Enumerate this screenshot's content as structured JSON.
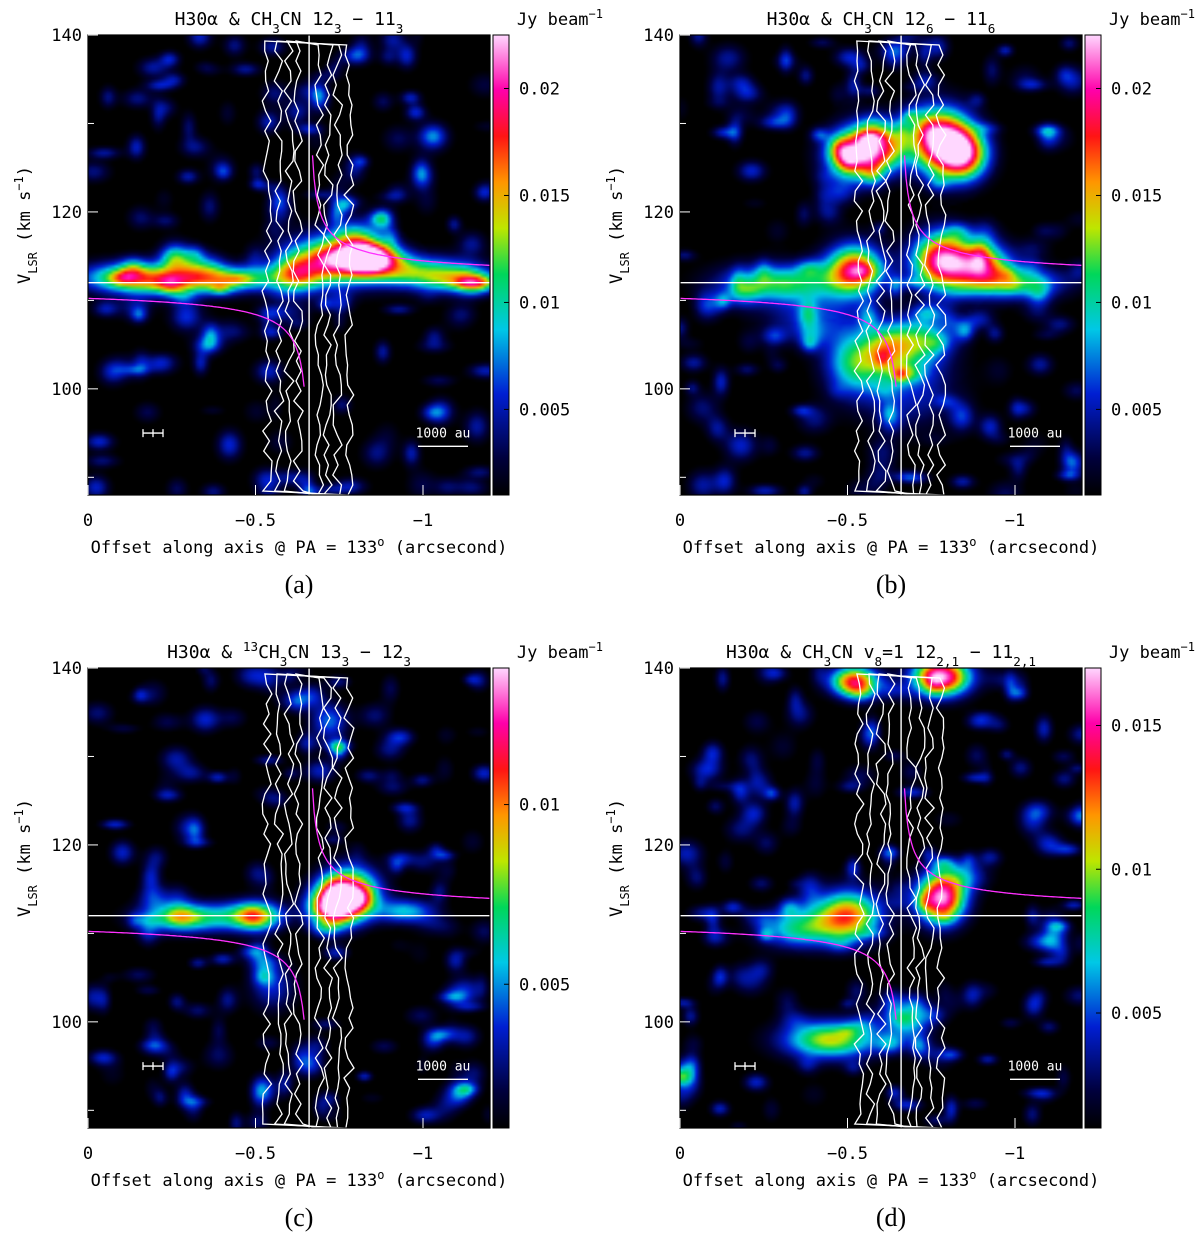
{
  "figure": {
    "panel_labels": [
      "(a)",
      "(b)",
      "(c)",
      "(d)"
    ],
    "colorbar_unit": "Jy beam",
    "colorbar_unit_exp": "−1",
    "xlabel": "Offset along axis @ PA = 133",
    "xlabel_deg": "o",
    "xlabel_unit": " (arcsecond)",
    "ylabel_main": "V",
    "ylabel_sub": "LSR",
    "ylabel_unit": " (km s",
    "ylabel_exp": "−1",
    "ylabel_close": ")",
    "scalebar_label": "1000  au"
  },
  "chart_data": [
    {
      "type": "heatmap",
      "panel": "(a)",
      "title_parts": [
        {
          "t": "H30α & CH",
          "s": ""
        },
        {
          "t": "3",
          "s": "sub"
        },
        {
          "t": "CN 12",
          "s": ""
        },
        {
          "t": "3",
          "s": "sub"
        },
        {
          "t": " − 11",
          "s": ""
        },
        {
          "t": "3",
          "s": "sub"
        }
      ],
      "x_ticks": [
        {
          "v": 0,
          "label": "0"
        },
        {
          "v": -0.5,
          "label": "−0.5"
        },
        {
          "v": -1,
          "label": "−1"
        }
      ],
      "y_ticks": [
        100,
        120,
        140
      ],
      "xlim": [
        0,
        -1.2
      ],
      "ylim": [
        88,
        140
      ],
      "colorbar_ticks": [
        {
          "v": 0.005,
          "label": "0.005"
        },
        {
          "v": 0.01,
          "label": "0.01"
        },
        {
          "v": 0.015,
          "label": "0.015"
        },
        {
          "v": 0.02,
          "label": "0.02"
        }
      ],
      "clim": [
        0.001,
        0.0225
      ],
      "systemic_velocity": 112,
      "center_offset": -0.66,
      "blobs": [
        [
          -0.12,
          112.6,
          0.1,
          1.2,
          0.011
        ],
        [
          -0.28,
          112.2,
          0.12,
          1.2,
          0.01
        ],
        [
          -0.45,
          112.5,
          0.1,
          1.0,
          0.009
        ],
        [
          -0.72,
          114.5,
          0.09,
          2.0,
          0.015
        ],
        [
          -0.84,
          114.8,
          0.06,
          1.2,
          0.022
        ],
        [
          -0.98,
          113.2,
          0.12,
          1.3,
          0.011
        ],
        [
          -1.12,
          112.2,
          0.08,
          1.0,
          0.008
        ],
        [
          -0.62,
          113.0,
          0.05,
          1.5,
          0.01
        ],
        [
          -0.8,
          117.0,
          0.05,
          1.5,
          0.008
        ]
      ]
    },
    {
      "type": "heatmap",
      "panel": "(b)",
      "title_parts": [
        {
          "t": "H30α & CH",
          "s": ""
        },
        {
          "t": "3",
          "s": "sub"
        },
        {
          "t": "CN 12",
          "s": ""
        },
        {
          "t": "6",
          "s": "sub"
        },
        {
          "t": " − 11",
          "s": ""
        },
        {
          "t": "6",
          "s": "sub"
        }
      ],
      "x_ticks": [
        {
          "v": 0,
          "label": "0"
        },
        {
          "v": -0.5,
          "label": "−0.5"
        },
        {
          "v": -1,
          "label": "−1"
        }
      ],
      "y_ticks": [
        100,
        120,
        140
      ],
      "xlim": [
        0,
        -1.2
      ],
      "ylim": [
        88,
        140
      ],
      "colorbar_ticks": [
        {
          "v": 0.005,
          "label": "0.005"
        },
        {
          "v": 0.01,
          "label": "0.01"
        },
        {
          "v": 0.015,
          "label": "0.015"
        },
        {
          "v": 0.02,
          "label": "0.02"
        }
      ],
      "clim": [
        0.001,
        0.0225
      ],
      "systemic_velocity": 112,
      "center_offset": -0.66,
      "blobs": [
        [
          -0.52,
          126.5,
          0.06,
          2.0,
          0.016
        ],
        [
          -0.6,
          127.5,
          0.06,
          2.0,
          0.014
        ],
        [
          -0.78,
          128.0,
          0.06,
          2.5,
          0.022
        ],
        [
          -0.85,
          126.5,
          0.05,
          2.0,
          0.016
        ],
        [
          -0.3,
          112.0,
          0.12,
          1.5,
          0.011
        ],
        [
          -0.52,
          113.5,
          0.06,
          2.0,
          0.017
        ],
        [
          -0.78,
          114.5,
          0.06,
          2.2,
          0.02
        ],
        [
          -0.9,
          114.0,
          0.06,
          1.8,
          0.015
        ],
        [
          -1.0,
          112.0,
          0.1,
          1.3,
          0.01
        ],
        [
          -0.52,
          103.0,
          0.06,
          2.5,
          0.01
        ],
        [
          -0.62,
          104.5,
          0.05,
          2.0,
          0.01
        ],
        [
          -0.72,
          105.5,
          0.06,
          2.0,
          0.01
        ],
        [
          -0.68,
          100.0,
          0.1,
          3.0,
          0.005
        ],
        [
          -0.4,
          108.0,
          0.1,
          2.0,
          0.005
        ]
      ]
    },
    {
      "type": "heatmap",
      "panel": "(c)",
      "title_parts": [
        {
          "t": "H30α & ",
          "s": ""
        },
        {
          "t": "13",
          "s": "sup"
        },
        {
          "t": "CH",
          "s": ""
        },
        {
          "t": "3",
          "s": "sub"
        },
        {
          "t": "CN 13",
          "s": ""
        },
        {
          "t": "3",
          "s": "sub"
        },
        {
          "t": " − 12",
          "s": ""
        },
        {
          "t": "3",
          "s": "sub"
        }
      ],
      "x_ticks": [
        {
          "v": 0,
          "label": "0"
        },
        {
          "v": -0.5,
          "label": "−0.5"
        },
        {
          "v": -1,
          "label": "−1"
        }
      ],
      "y_ticks": [
        100,
        120,
        140
      ],
      "xlim": [
        0,
        -1.2
      ],
      "ylim": [
        88,
        140
      ],
      "colorbar_ticks": [
        {
          "v": 0.005,
          "label": "0.005"
        },
        {
          "v": 0.01,
          "label": "0.01"
        }
      ],
      "clim": [
        0.001,
        0.0138
      ],
      "systemic_velocity": 112,
      "center_offset": -0.66,
      "blobs": [
        [
          -0.3,
          111.8,
          0.1,
          1.2,
          0.007
        ],
        [
          -0.5,
          112.0,
          0.06,
          1.2,
          0.008
        ],
        [
          -0.78,
          114.5,
          0.06,
          2.0,
          0.012
        ],
        [
          -0.73,
          113.0,
          0.05,
          1.5,
          0.01
        ],
        [
          -0.95,
          112.5,
          0.06,
          1.0,
          0.005
        ],
        [
          -0.72,
          134.0,
          0.04,
          1.5,
          0.004
        ],
        [
          -0.55,
          104.0,
          0.05,
          2.0,
          0.003
        ]
      ]
    },
    {
      "type": "heatmap",
      "panel": "(d)",
      "title_parts": [
        {
          "t": "H30α & CH",
          "s": ""
        },
        {
          "t": "3",
          "s": "sub"
        },
        {
          "t": "CN v",
          "s": ""
        },
        {
          "t": "8",
          "s": "sub"
        },
        {
          "t": "=1 12",
          "s": ""
        },
        {
          "t": "2,1",
          "s": "sub"
        },
        {
          "t": " − 11",
          "s": ""
        },
        {
          "t": "2,1",
          "s": "sub"
        }
      ],
      "x_ticks": [
        {
          "v": 0,
          "label": "0"
        },
        {
          "v": -0.5,
          "label": "−0.5"
        },
        {
          "v": -1,
          "label": "−1"
        }
      ],
      "y_ticks": [
        100,
        120,
        140
      ],
      "xlim": [
        0,
        -1.2
      ],
      "ylim": [
        88,
        140
      ],
      "colorbar_ticks": [
        {
          "v": 0.005,
          "label": "0.005"
        },
        {
          "v": 0.01,
          "label": "0.01"
        },
        {
          "v": 0.015,
          "label": "0.015"
        }
      ],
      "clim": [
        0.001,
        0.017
      ],
      "systemic_velocity": 112,
      "center_offset": -0.66,
      "blobs": [
        [
          -0.52,
          138.5,
          0.05,
          1.2,
          0.013
        ],
        [
          -0.78,
          139.0,
          0.06,
          1.5,
          0.016
        ],
        [
          -0.5,
          112.0,
          0.07,
          2.0,
          0.012
        ],
        [
          -0.78,
          114.0,
          0.05,
          2.0,
          0.016
        ],
        [
          -0.35,
          110.5,
          0.08,
          1.5,
          0.007
        ],
        [
          -0.45,
          98.0,
          0.1,
          1.5,
          0.01
        ],
        [
          -0.68,
          100.0,
          0.05,
          1.5,
          0.006
        ],
        [
          -0.85,
          116.5,
          0.05,
          1.2,
          0.004
        ]
      ]
    }
  ]
}
